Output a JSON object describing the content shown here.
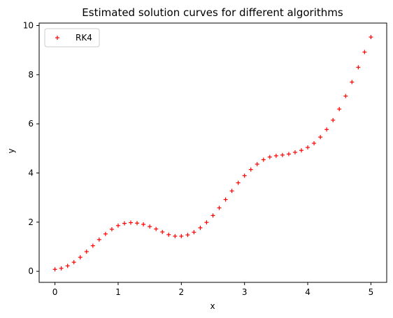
{
  "chart_data": {
    "type": "scatter",
    "title": "Estimated solution curves for different algorithms",
    "xlabel": "x",
    "ylabel": "y",
    "xlim": [
      -0.25,
      5.25
    ],
    "ylim": [
      -0.45,
      10.1
    ],
    "xticks": [
      0,
      1,
      2,
      3,
      4,
      5
    ],
    "yticks": [
      0,
      2,
      4,
      6,
      8,
      10
    ],
    "grid": false,
    "legend_position": "top-left",
    "series": [
      {
        "name": "RK4",
        "color": "#ff0000",
        "marker": "plus",
        "x": [
          0,
          0.1,
          0.2,
          0.3,
          0.4,
          0.5,
          0.6,
          0.7,
          0.8,
          0.9,
          1.0,
          1.1,
          1.2,
          1.3,
          1.4,
          1.5,
          1.6,
          1.7,
          1.8,
          1.9,
          2.0,
          2.1,
          2.2,
          2.3,
          2.4,
          2.5,
          2.6,
          2.7,
          2.8,
          2.9,
          3.0,
          3.1,
          3.2,
          3.3,
          3.4,
          3.5,
          3.6,
          3.7,
          3.8,
          3.9,
          4.0,
          4.1,
          4.2,
          4.3,
          4.4,
          4.5,
          4.6,
          4.7,
          4.8,
          4.9,
          5.0
        ],
        "y": [
          0.08,
          0.12,
          0.22,
          0.37,
          0.57,
          0.8,
          1.04,
          1.29,
          1.52,
          1.71,
          1.86,
          1.95,
          1.98,
          1.96,
          1.91,
          1.82,
          1.72,
          1.6,
          1.49,
          1.43,
          1.43,
          1.48,
          1.59,
          1.77,
          1.99,
          2.27,
          2.58,
          2.92,
          3.27,
          3.6,
          3.89,
          4.14,
          4.36,
          4.54,
          4.65,
          4.7,
          4.73,
          4.77,
          4.84,
          4.92,
          5.04,
          5.21,
          5.46,
          5.77,
          6.15,
          6.6,
          7.13,
          7.7,
          8.3,
          8.92,
          9.53
        ]
      }
    ]
  }
}
